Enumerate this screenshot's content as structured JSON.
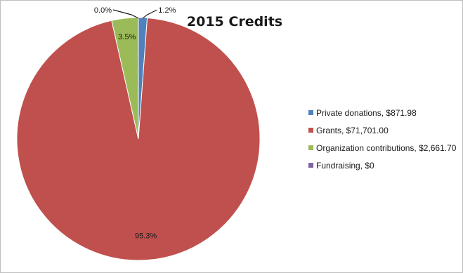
{
  "chart_data": {
    "type": "pie",
    "title": "2015 Credits",
    "slices": [
      {
        "name": "Private donations",
        "legend": "Private donations, $871.98",
        "value": 871.98,
        "label": "1.2%",
        "color": "#4f81bd"
      },
      {
        "name": "Grants",
        "legend": "Grants, $71,701.00",
        "value": 71701.0,
        "label": "95.3%",
        "color": "#c0504d"
      },
      {
        "name": "Organization contributions",
        "legend": "Organization contributions, $2,661.70",
        "value": 2661.7,
        "label": "3.5%",
        "color": "#9bbb59"
      },
      {
        "name": "Fundraising",
        "legend": "Fundraising, $0",
        "value": 0,
        "label": "0.0%",
        "color": "#8064a2"
      }
    ],
    "legend_position": "right"
  }
}
